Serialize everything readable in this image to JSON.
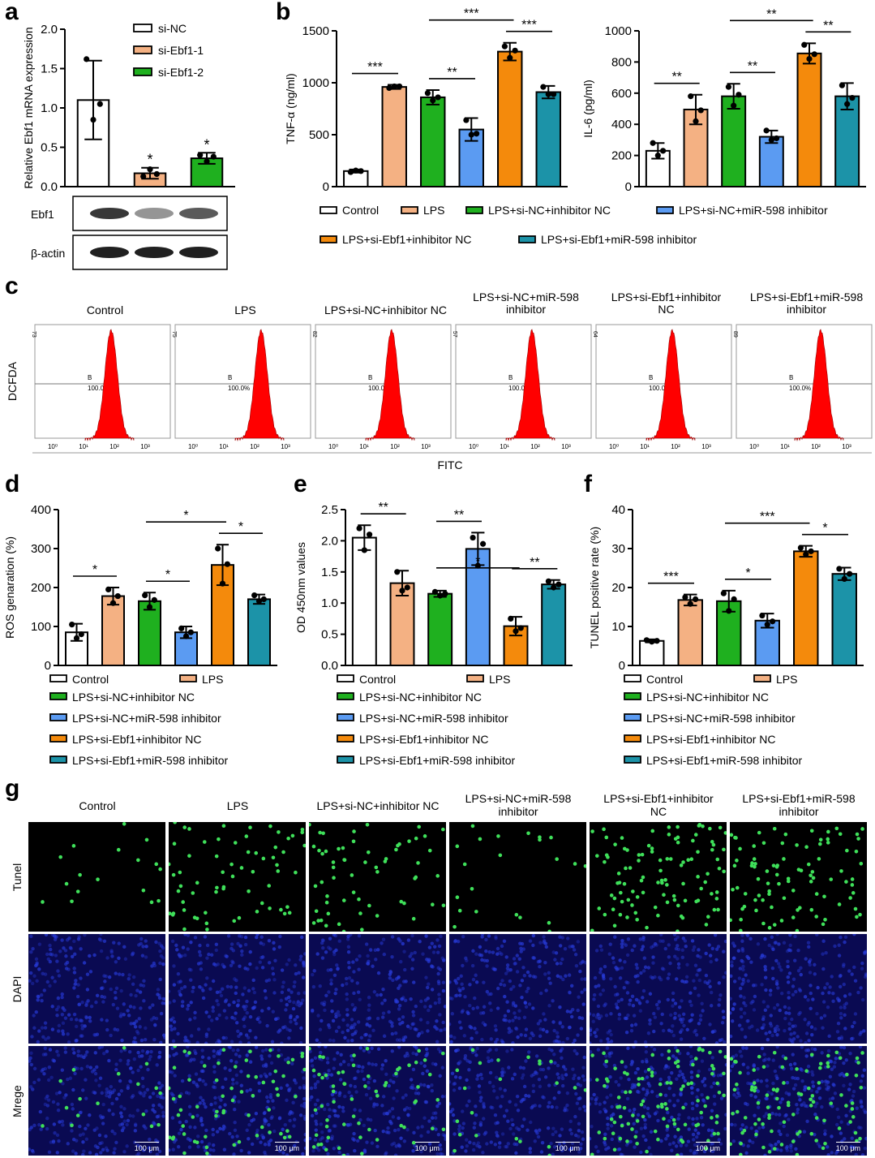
{
  "panel_letters": {
    "a": "a",
    "b": "b",
    "c": "c",
    "d": "d",
    "e": "e",
    "f": "f",
    "g": "g"
  },
  "groups6": [
    "Control",
    "LPS",
    "LPS+si-NC+inhibitor NC",
    "LPS+si-NC+miR-598 inhibitor",
    "LPS+si-Ebf1+inhibitor NC",
    "LPS+si-Ebf1+miR-598 inhibitor"
  ],
  "colors6": [
    "#ffffff",
    "#f4b183",
    "#1fb01f",
    "#5b9bf2",
    "#f48a0c",
    "#1c93a8"
  ],
  "chart_data": [
    {
      "id": "a",
      "type": "bar",
      "categories": [
        "si-NC",
        "si-Ebf1-1",
        "si-Ebf1-2"
      ],
      "values": [
        1.1,
        0.17,
        0.36
      ],
      "errors": [
        0.5,
        0.07,
        0.07
      ],
      "points": [
        [
          1.62,
          0.85,
          1.05
        ],
        [
          0.13,
          0.22,
          0.16
        ],
        [
          0.4,
          0.32,
          0.38
        ]
      ],
      "colors": [
        "#ffffff",
        "#f4b183",
        "#1fb01f"
      ],
      "ylabel": "Relative Ebf1 mRNA expression",
      "ylim": [
        0,
        2.0
      ],
      "yticks": [
        "0.0",
        "0.5",
        "1.0",
        "1.5",
        "2.0"
      ],
      "stars": [
        "",
        "*",
        "*"
      ],
      "legend": [
        "si-NC",
        "si-Ebf1-1",
        "si-Ebf1-2"
      ]
    },
    {
      "id": "b1",
      "type": "bar",
      "values": [
        150,
        960,
        860,
        550,
        1300,
        910
      ],
      "errors": [
        15,
        20,
        70,
        110,
        85,
        60
      ],
      "points": [
        [
          140,
          155,
          150
        ],
        [
          950,
          965,
          965
        ],
        [
          900,
          830,
          860
        ],
        [
          640,
          500,
          510
        ],
        [
          1350,
          1240,
          1310
        ],
        [
          960,
          890,
          890
        ]
      ],
      "ylabel": "TNF-α (ng/ml)",
      "ylim": [
        0,
        1500
      ],
      "yticks": [
        "0",
        "500",
        "1000",
        "1500"
      ],
      "comparisons": [
        {
          "a": 0,
          "b": 1,
          "label": "***"
        },
        {
          "a": 2,
          "b": 3,
          "label": "**"
        },
        {
          "a": 2,
          "b": 4,
          "label": "***"
        },
        {
          "a": 4,
          "b": 5,
          "label": "***"
        }
      ]
    },
    {
      "id": "b2",
      "type": "bar",
      "values": [
        230,
        495,
        580,
        320,
        855,
        580
      ],
      "errors": [
        50,
        95,
        80,
        40,
        65,
        85
      ],
      "points": [
        [
          280,
          200,
          230
        ],
        [
          580,
          420,
          490
        ],
        [
          640,
          520,
          590
        ],
        [
          360,
          300,
          310
        ],
        [
          910,
          820,
          850
        ],
        [
          650,
          530,
          570
        ]
      ],
      "ylabel": "IL-6 (pg/ml)",
      "ylim": [
        0,
        1000
      ],
      "yticks": [
        "0",
        "200",
        "400",
        "600",
        "800",
        "1000"
      ],
      "comparisons": [
        {
          "a": 0,
          "b": 1,
          "label": "**"
        },
        {
          "a": 2,
          "b": 3,
          "label": "**"
        },
        {
          "a": 2,
          "b": 4,
          "label": "**"
        },
        {
          "a": 4,
          "b": 5,
          "label": "**"
        }
      ]
    },
    {
      "id": "d",
      "type": "bar",
      "values": [
        85,
        178,
        165,
        85,
        258,
        170
      ],
      "errors": [
        22,
        22,
        22,
        15,
        52,
        12
      ],
      "points": [
        [
          105,
          70,
          80
        ],
        [
          195,
          160,
          178
        ],
        [
          180,
          150,
          168
        ],
        [
          95,
          75,
          85
        ],
        [
          300,
          210,
          260
        ],
        [
          180,
          165,
          170
        ]
      ],
      "ylabel": "ROS genaration (%)",
      "ylim": [
        0,
        400
      ],
      "yticks": [
        "0",
        "100",
        "200",
        "300",
        "400"
      ],
      "comparisons": [
        {
          "a": 0,
          "b": 1,
          "label": "*"
        },
        {
          "a": 2,
          "b": 3,
          "label": "*"
        },
        {
          "a": 2,
          "b": 4,
          "label": "*"
        },
        {
          "a": 4,
          "b": 5,
          "label": "*"
        }
      ]
    },
    {
      "id": "e",
      "type": "bar",
      "values": [
        2.05,
        1.32,
        1.15,
        1.87,
        0.63,
        1.3
      ],
      "errors": [
        0.2,
        0.2,
        0.05,
        0.26,
        0.15,
        0.07
      ],
      "points": [
        [
          2.2,
          1.85,
          2.1
        ],
        [
          1.5,
          1.2,
          1.25
        ],
        [
          1.18,
          1.12,
          1.15
        ],
        [
          2.05,
          1.6,
          1.95
        ],
        [
          0.75,
          0.55,
          0.6
        ],
        [
          1.35,
          1.25,
          1.3
        ]
      ],
      "ylabel": "OD 450nm values",
      "ylim": [
        0,
        2.5
      ],
      "yticks": [
        "0.0",
        "0.5",
        "1.0",
        "1.5",
        "2.0",
        "2.5"
      ],
      "comparisons": [
        {
          "a": 0,
          "b": 1,
          "label": "**"
        },
        {
          "a": 2,
          "b": 3,
          "label": "**"
        },
        {
          "a": 2,
          "b": 4,
          "label": "*"
        },
        {
          "a": 4,
          "b": 5,
          "label": "**"
        }
      ]
    },
    {
      "id": "f",
      "type": "bar",
      "values": [
        6.3,
        16.8,
        16.5,
        11.5,
        29.3,
        23.5
      ],
      "errors": [
        0.4,
        1.4,
        2.7,
        1.8,
        1.4,
        1.6
      ],
      "points": [
        [
          6.5,
          6.1,
          6.3
        ],
        [
          17.5,
          15.8,
          17.0
        ],
        [
          18.5,
          14.0,
          17.0
        ],
        [
          12.8,
          10.5,
          11.3
        ],
        [
          30.2,
          28.5,
          29.3
        ],
        [
          24.8,
          22.2,
          23.5
        ]
      ],
      "ylabel": "TUNEL positive rate (%)",
      "ylim": [
        0,
        40
      ],
      "yticks": [
        "0",
        "10",
        "20",
        "30",
        "40"
      ],
      "comparisons": [
        {
          "a": 0,
          "b": 1,
          "label": "***"
        },
        {
          "a": 2,
          "b": 3,
          "label": "*"
        },
        {
          "a": 2,
          "b": 4,
          "label": "***"
        },
        {
          "a": 4,
          "b": 5,
          "label": "*"
        }
      ]
    }
  ],
  "western": {
    "rows": [
      "Ebf1",
      "β-actin"
    ]
  },
  "flow": {
    "titles": [
      "Control",
      "LPS",
      "LPS+si-NC+inhibitor NC",
      "LPS+si-NC+miR-598\ninhibitor",
      "LPS+si-Ebf1+inhibitor\nNC",
      "LPS+si-Ebf1+miR-598\ninhibitor"
    ],
    "ymax": [
      "73",
      "75",
      "82",
      "57",
      "64",
      "89"
    ],
    "gate_name": "B",
    "gate_pct": "100.0%",
    "xticks": [
      "10⁰",
      "10¹",
      "10²",
      "10³"
    ],
    "ylabel": "DCFDA",
    "xlabel": "FITC",
    "color": "#ff0000"
  },
  "micro": {
    "titles": [
      "Control",
      "LPS",
      "LPS+si-NC+inhibitor NC",
      "LPS+si-NC+miR-598\ninhibitor",
      "LPS+si-Ebf1+inhibitor\nNC",
      "LPS+si-Ebf1+miR-598\ninhibitor"
    ],
    "rows": [
      "Tunel",
      "DAPI",
      "Mrege"
    ],
    "scale": "100 μm",
    "tunel_density": [
      0.15,
      0.6,
      0.55,
      0.2,
      0.95,
      0.85
    ]
  }
}
